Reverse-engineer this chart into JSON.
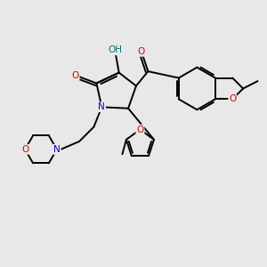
{
  "bg_color": "#e8e8e8",
  "bond_color": "#000000",
  "lw": 1.4,
  "figsize": [
    3.0,
    3.0
  ],
  "dpi": 100,
  "colors": {
    "O": "#dd0000",
    "N": "#0000cc",
    "OH": "#007878",
    "C": "#000000"
  }
}
